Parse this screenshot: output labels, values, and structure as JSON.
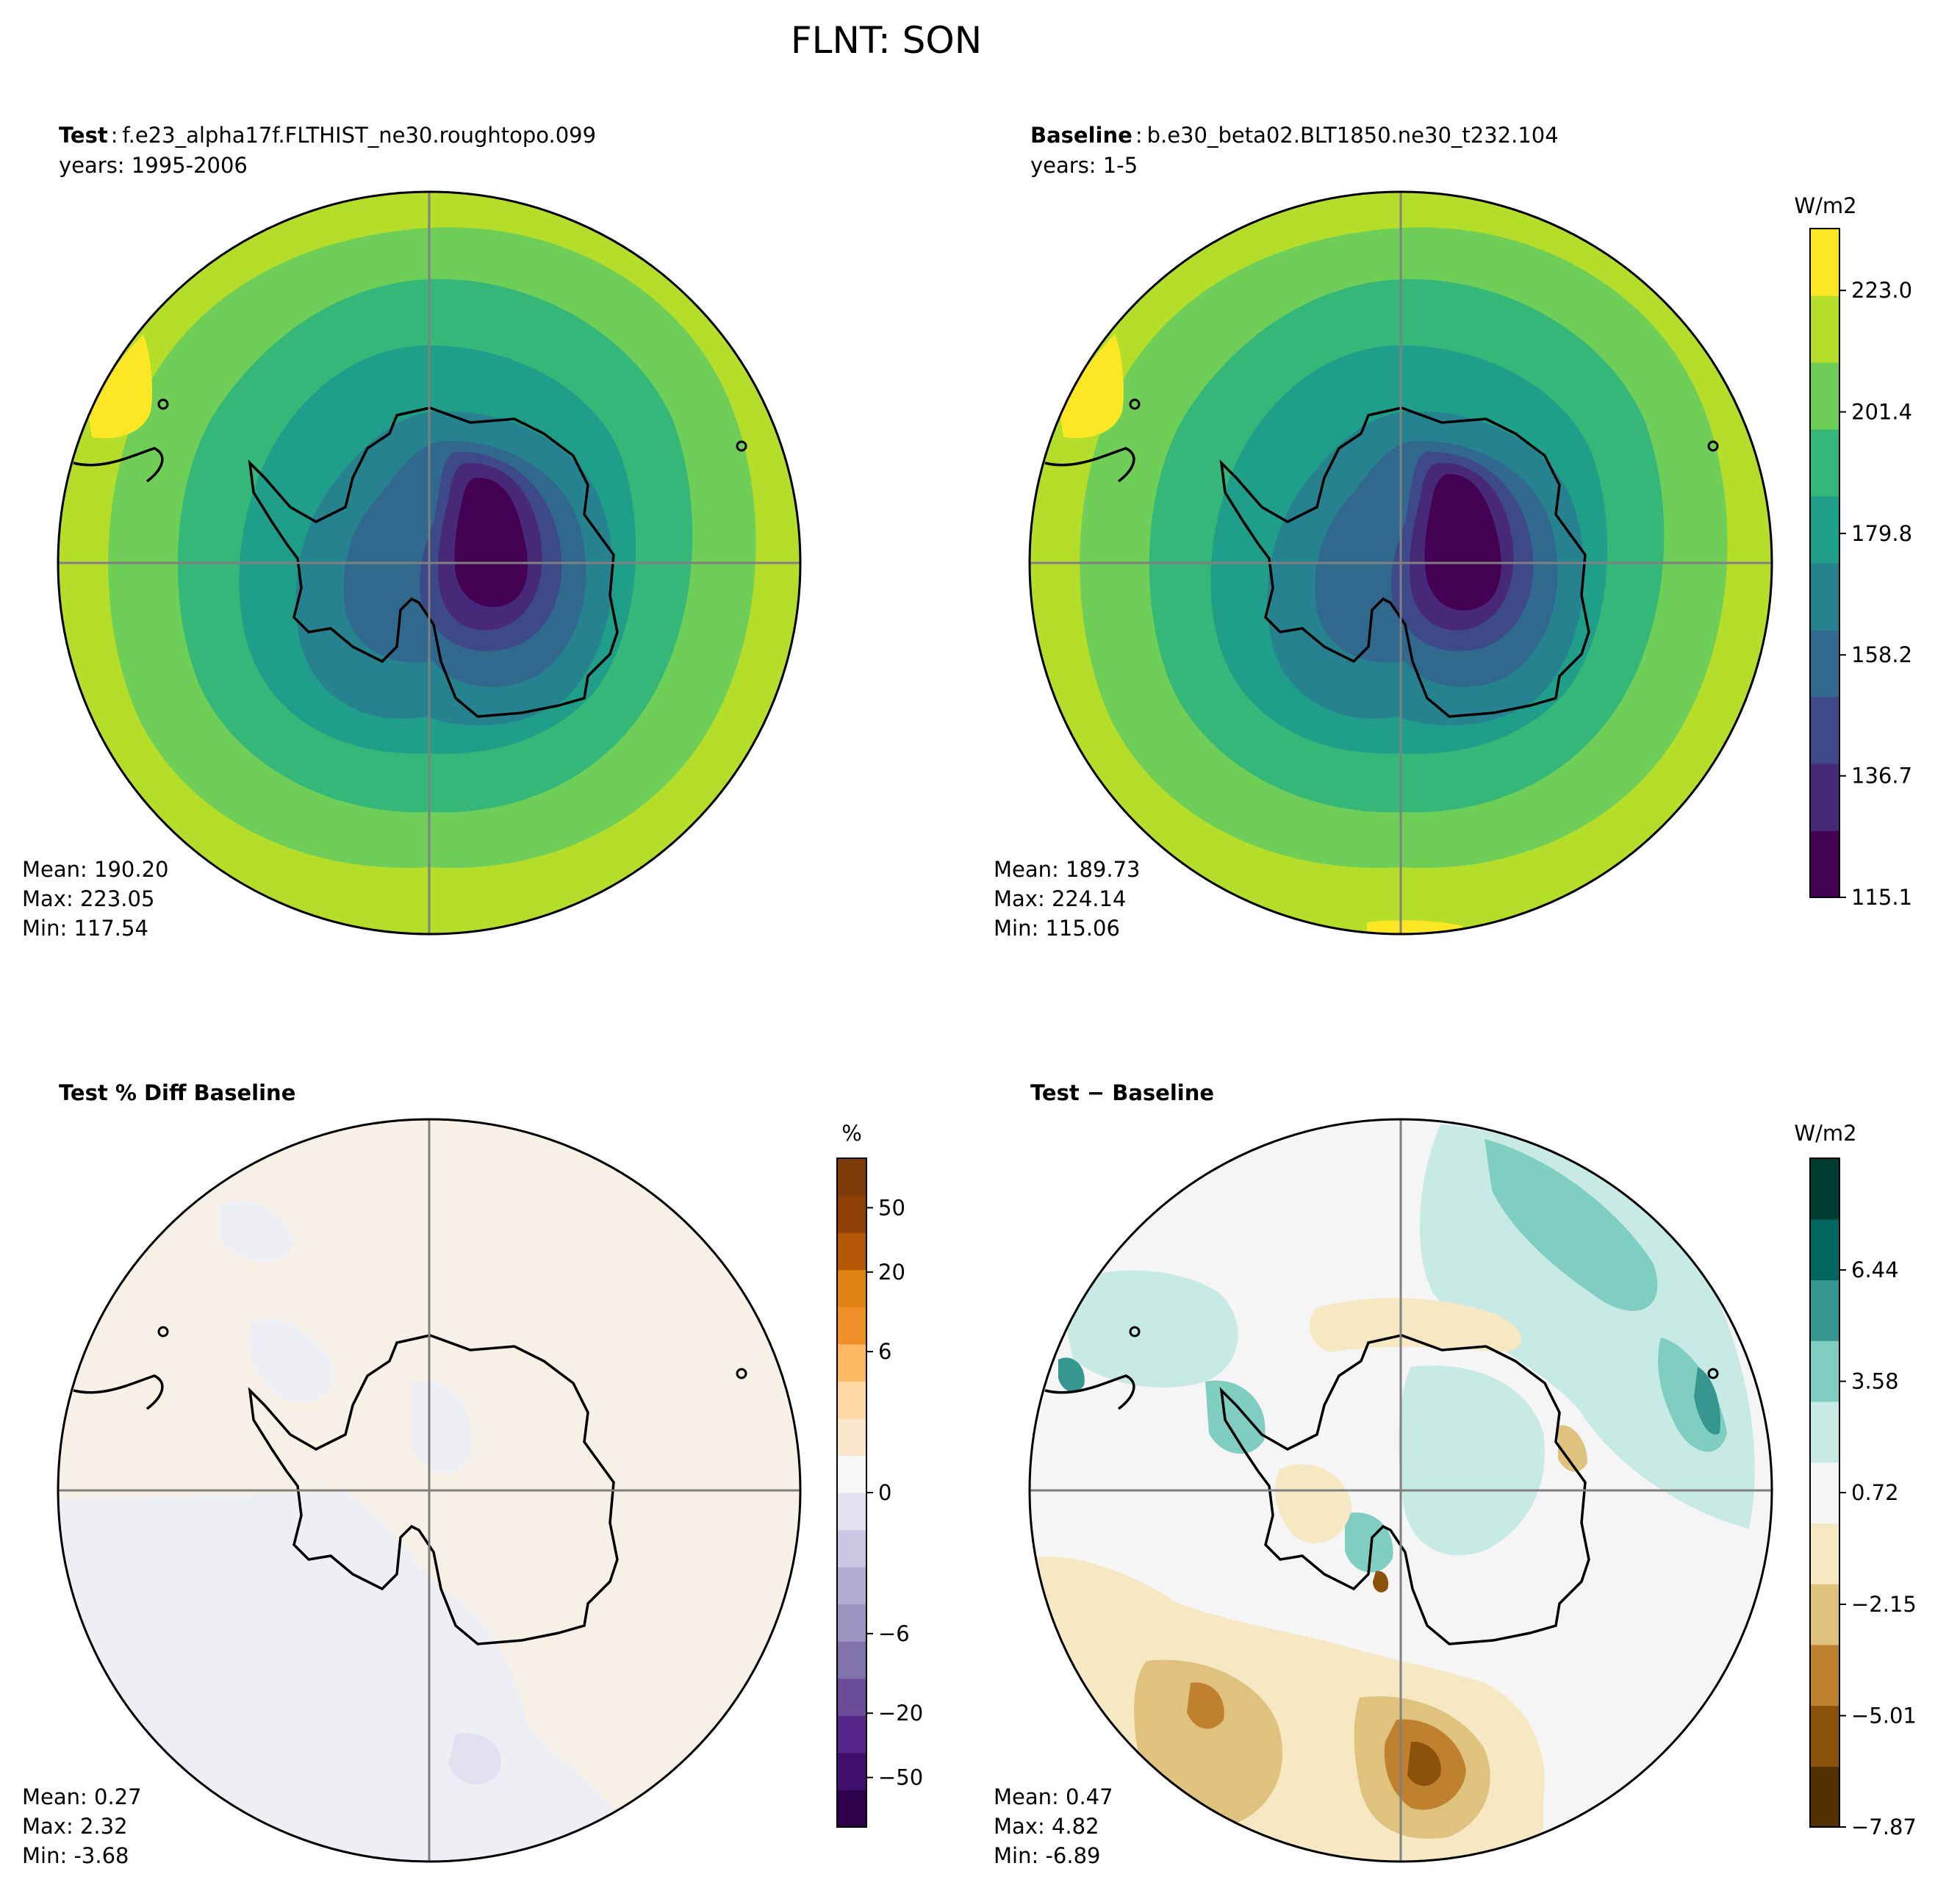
{
  "figure": {
    "title": "FLNT: SON"
  },
  "colors": {
    "viridis": [
      "#440154",
      "#482878",
      "#3e4989",
      "#31688e",
      "#26828e",
      "#1f9e89",
      "#35b779",
      "#6ece58",
      "#b5de2b",
      "#fde725"
    ],
    "puor": [
      "#2d004b",
      "#3f0f6e",
      "#542788",
      "#6a4c99",
      "#8073ac",
      "#9b93c2",
      "#b2abd2",
      "#cbc6e3",
      "#e3e1ef",
      "#f7f7f7",
      "#fbe8cc",
      "#fdd7a3",
      "#fdb863",
      "#f08f2a",
      "#e08214",
      "#b35806",
      "#8f4105",
      "#7f3b08"
    ],
    "brbg": [
      "#543005",
      "#8c510a",
      "#bf812d",
      "#dfc27d",
      "#f6e8c3",
      "#f5f5f5",
      "#c7eae5",
      "#80cdc1",
      "#35978f",
      "#01665e",
      "#003c30"
    ]
  },
  "chart_data": [
    {
      "type": "heatmap",
      "projection": "south-polar-stereographic",
      "title_bold": "Test",
      "title_sep": ":",
      "case": "f.e23_alpha17f.FLTHIST_ne30.roughtopo.099",
      "years": "years: 1995-2006",
      "stats": [
        "Mean: 190.20",
        "Max: 223.05",
        "Min: 117.54"
      ],
      "field_range": [
        117.54,
        223.05
      ],
      "cmap": "viridis"
    },
    {
      "type": "heatmap",
      "projection": "south-polar-stereographic",
      "title_bold": "Baseline",
      "title_sep": ":",
      "case": "b.e30_beta02.BLT1850.ne30_t232.104",
      "years": "years: 1-5",
      "stats": [
        "Mean: 189.73",
        "Max: 224.14",
        "Min: 115.06"
      ],
      "field_range": [
        115.06,
        224.14
      ],
      "cmap": "viridis",
      "colorbar": {
        "units": "W/m2",
        "ticks": [
          "223.0",
          "201.4",
          "179.8",
          "158.2",
          "136.7",
          "115.1"
        ],
        "tick_values": [
          223.0,
          201.4,
          179.8,
          158.2,
          136.7,
          115.1
        ],
        "range": [
          115.1,
          234.0
        ],
        "levels": 11
      }
    },
    {
      "type": "heatmap",
      "projection": "south-polar-stereographic",
      "title_bold": "Test % Diff Baseline",
      "stats": [
        "Mean:  0.27",
        "Max:  2.32",
        "Min: -3.68"
      ],
      "field_range": [
        -3.68,
        2.32
      ],
      "cmap": "puor",
      "colorbar": {
        "units": "%",
        "ticks": [
          "50",
          "20",
          "6",
          "0",
          "−6",
          "−20",
          "−50"
        ],
        "tick_values": [
          50,
          20,
          6,
          0,
          -6,
          -20,
          -50
        ],
        "range": [
          -100,
          100
        ],
        "levels": 18
      }
    },
    {
      "type": "heatmap",
      "projection": "south-polar-stereographic",
      "title_bold": "Test − Baseline",
      "stats": [
        "Mean:  0.47",
        "Max:  4.82",
        "Min: -6.89"
      ],
      "field_range": [
        -6.89,
        4.82
      ],
      "cmap": "brbg",
      "colorbar": {
        "units": "W/m2",
        "ticks": [
          "6.44",
          "3.58",
          "0.72",
          "−2.15",
          "−5.01",
          "−7.87"
        ],
        "tick_values": [
          6.44,
          3.58,
          0.72,
          -2.15,
          -5.01,
          -7.87
        ],
        "range": [
          -7.87,
          9.31
        ],
        "levels": 12
      }
    }
  ]
}
